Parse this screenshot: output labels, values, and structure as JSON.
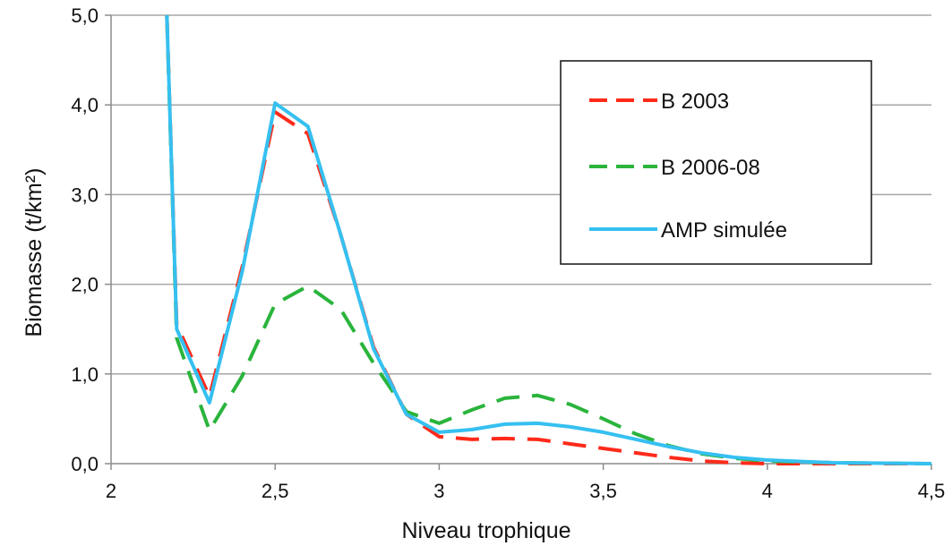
{
  "chart_data": {
    "type": "line",
    "xlabel": "Niveau trophique",
    "ylabel": "Biomasse (t/km²)",
    "xlim": [
      2,
      4.5
    ],
    "ylim": [
      0,
      5
    ],
    "x_ticks": [
      "2",
      "2,5",
      "3",
      "3,5",
      "4",
      "4,5"
    ],
    "y_ticks": [
      "0,0",
      "1,0",
      "2,0",
      "3,0",
      "4,0",
      "5,0"
    ],
    "grid": "horizontal",
    "legend_position": "top-right",
    "series": [
      {
        "name": "B 2003",
        "color": "#ff2a1a",
        "style": "dashed",
        "points": [
          [
            2.17,
            5.0
          ],
          [
            2.2,
            1.55
          ],
          [
            2.3,
            0.75
          ],
          [
            2.4,
            2.2
          ],
          [
            2.5,
            3.92
          ],
          [
            2.6,
            3.68
          ],
          [
            2.7,
            2.55
          ],
          [
            2.8,
            1.3
          ],
          [
            2.9,
            0.55
          ],
          [
            3.0,
            0.3
          ],
          [
            3.1,
            0.27
          ],
          [
            3.2,
            0.28
          ],
          [
            3.3,
            0.27
          ],
          [
            3.4,
            0.22
          ],
          [
            3.5,
            0.17
          ],
          [
            3.6,
            0.12
          ],
          [
            3.7,
            0.07
          ],
          [
            3.8,
            0.03
          ],
          [
            3.9,
            0.01
          ],
          [
            4.0,
            0.0
          ],
          [
            4.5,
            0.0
          ]
        ]
      },
      {
        "name": "B 2006-08",
        "color": "#2ab43c",
        "style": "dashed",
        "points": [
          [
            2.17,
            5.0
          ],
          [
            2.2,
            1.4
          ],
          [
            2.3,
            0.37
          ],
          [
            2.4,
            0.98
          ],
          [
            2.5,
            1.78
          ],
          [
            2.6,
            1.98
          ],
          [
            2.7,
            1.72
          ],
          [
            2.8,
            1.12
          ],
          [
            2.9,
            0.58
          ],
          [
            3.0,
            0.45
          ],
          [
            3.1,
            0.6
          ],
          [
            3.2,
            0.73
          ],
          [
            3.3,
            0.76
          ],
          [
            3.4,
            0.66
          ],
          [
            3.5,
            0.5
          ],
          [
            3.6,
            0.33
          ],
          [
            3.7,
            0.2
          ],
          [
            3.8,
            0.11
          ],
          [
            3.9,
            0.06
          ],
          [
            4.0,
            0.03
          ],
          [
            4.2,
            0.01
          ],
          [
            4.5,
            0.0
          ]
        ]
      },
      {
        "name": "AMP simulée",
        "color": "#35c0f0",
        "style": "solid",
        "points": [
          [
            2.17,
            5.0
          ],
          [
            2.2,
            1.5
          ],
          [
            2.3,
            0.68
          ],
          [
            2.4,
            2.15
          ],
          [
            2.5,
            4.02
          ],
          [
            2.6,
            3.76
          ],
          [
            2.7,
            2.55
          ],
          [
            2.8,
            1.28
          ],
          [
            2.9,
            0.55
          ],
          [
            3.0,
            0.35
          ],
          [
            3.1,
            0.38
          ],
          [
            3.2,
            0.44
          ],
          [
            3.3,
            0.45
          ],
          [
            3.4,
            0.41
          ],
          [
            3.5,
            0.35
          ],
          [
            3.6,
            0.27
          ],
          [
            3.7,
            0.19
          ],
          [
            3.8,
            0.12
          ],
          [
            3.9,
            0.07
          ],
          [
            4.0,
            0.04
          ],
          [
            4.2,
            0.01
          ],
          [
            4.5,
            0.0
          ]
        ]
      }
    ]
  }
}
